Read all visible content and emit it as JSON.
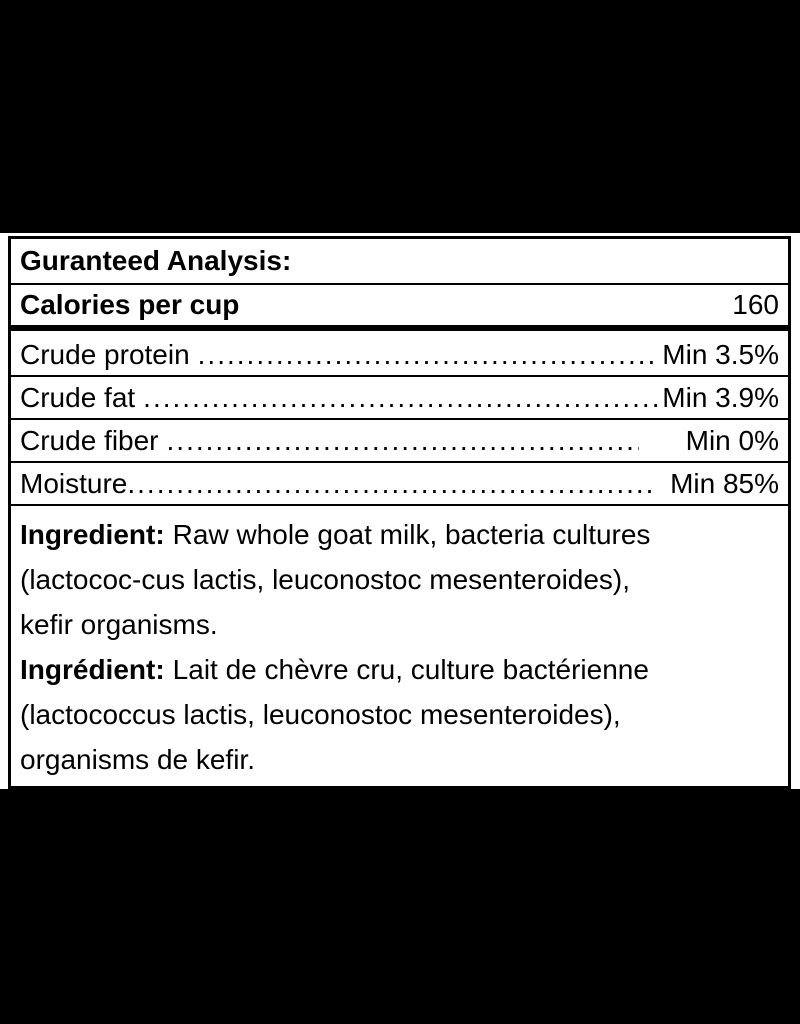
{
  "label": {
    "header": "Guranteed Analysis:",
    "calories": {
      "label": "Calories per cup",
      "value": "160"
    },
    "rows": [
      {
        "label": "Crude protein",
        "value": "Min 3.5%"
      },
      {
        "label": "Crude fat",
        "value": "Min 3.9%"
      },
      {
        "label": "Crude fiber",
        "value": "Min 0%"
      },
      {
        "label": "Moisture",
        "value": "Min 85%"
      }
    ],
    "ingredients_en": {
      "label": "Ingredient:",
      "line1": "Raw whole goat milk, bacteria cultures",
      "line2": "(lactococ-cus lactis, leuconostoc mesenteroides),",
      "line3": "kefir organisms."
    },
    "ingredients_fr": {
      "label": "Ingrédient:",
      "line1": "Lait de chèvre cru, culture bactérienne",
      "line2": "(lactococcus lactis, leuconostoc mesenteroides),",
      "line3": "organisms de kefir."
    },
    "colors": {
      "background": "#000000",
      "panel": "#ffffff",
      "text": "#000000",
      "border": "#000000"
    }
  }
}
